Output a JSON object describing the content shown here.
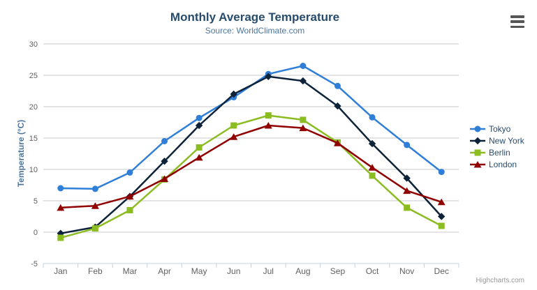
{
  "chart_data": {
    "type": "line",
    "title": "Monthly Average Temperature",
    "subtitle": "Source: WorldClimate.com",
    "xlabel": "",
    "ylabel": "Temperature (°C)",
    "ylim": [
      -5,
      30
    ],
    "yticks": [
      -5,
      0,
      5,
      10,
      15,
      20,
      25,
      30
    ],
    "grid": true,
    "legend_position": "right",
    "categories": [
      "Jan",
      "Feb",
      "Mar",
      "Apr",
      "May",
      "Jun",
      "Jul",
      "Aug",
      "Sep",
      "Oct",
      "Nov",
      "Dec"
    ],
    "series": [
      {
        "name": "Tokyo",
        "color": "#2f7ed8",
        "marker": "circle",
        "values": [
          7.0,
          6.9,
          9.5,
          14.5,
          18.2,
          21.5,
          25.2,
          26.5,
          23.3,
          18.3,
          13.9,
          9.6
        ]
      },
      {
        "name": "New York",
        "color": "#0d233a",
        "marker": "diamond",
        "values": [
          -0.2,
          0.8,
          5.7,
          11.3,
          17.0,
          22.0,
          24.8,
          24.1,
          20.1,
          14.1,
          8.6,
          2.5
        ]
      },
      {
        "name": "Berlin",
        "color": "#8bbc21",
        "marker": "square",
        "values": [
          -0.9,
          0.6,
          3.5,
          8.4,
          13.5,
          17.0,
          18.6,
          17.9,
          14.3,
          9.0,
          3.9,
          1.0
        ]
      },
      {
        "name": "London",
        "color": "#910000",
        "marker": "triangle",
        "values": [
          3.9,
          4.2,
          5.7,
          8.5,
          11.9,
          15.2,
          17.0,
          16.6,
          14.2,
          10.3,
          6.6,
          4.8
        ]
      }
    ]
  },
  "credits": {
    "text": "Highcharts.com"
  },
  "menu_icon": "hamburger-export-menu",
  "colors": {
    "title": "#274b6d",
    "subtitle": "#4d759e",
    "axis_title": "#4d759e",
    "axis_label": "#606060",
    "gridline": "#c9c9c9",
    "axis_line": "#c0d0e0",
    "legend_text": "#274b6d",
    "credit": "#999999",
    "menu_icon_color": "#565656",
    "background": "#ffffff"
  }
}
